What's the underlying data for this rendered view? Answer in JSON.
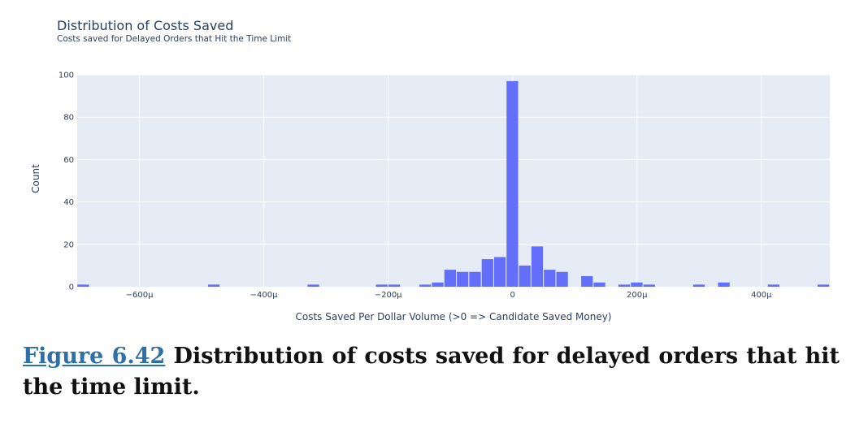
{
  "chart_data": {
    "type": "bar",
    "title": "Distribution of Costs Saved",
    "subtitle": "Costs saved for Delayed Orders that Hit the Time Limit",
    "xlabel": "Costs Saved Per Dollar Volume (>0 => Candidate Saved Money)",
    "ylabel": "Count",
    "xlim": [
      -700,
      510
    ],
    "ylim": [
      0,
      100
    ],
    "grid": true,
    "bar_width": 19.4,
    "bar_color": "#636efa",
    "plot_bg": "#e5ecf6",
    "x_tick_values": [
      -600,
      -400,
      -200,
      0,
      200,
      400
    ],
    "x_tick_labels": [
      "−600μ",
      "−400μ",
      "−200μ",
      "0",
      "200μ",
      "400μ"
    ],
    "y_tick_values": [
      0,
      20,
      40,
      60,
      80,
      100
    ],
    "y_tick_labels": [
      "0",
      "20",
      "40",
      "60",
      "80",
      "100"
    ],
    "bins": [
      {
        "x": -690,
        "count": 1
      },
      {
        "x": -480,
        "count": 1
      },
      {
        "x": -320,
        "count": 1
      },
      {
        "x": -210,
        "count": 1
      },
      {
        "x": -190,
        "count": 1
      },
      {
        "x": -140,
        "count": 1
      },
      {
        "x": -120,
        "count": 2
      },
      {
        "x": -100,
        "count": 8
      },
      {
        "x": -80,
        "count": 7
      },
      {
        "x": -60,
        "count": 7
      },
      {
        "x": -40,
        "count": 13
      },
      {
        "x": -20,
        "count": 14
      },
      {
        "x": 0,
        "count": 97
      },
      {
        "x": 20,
        "count": 10
      },
      {
        "x": 40,
        "count": 19
      },
      {
        "x": 60,
        "count": 8
      },
      {
        "x": 80,
        "count": 7
      },
      {
        "x": 120,
        "count": 5
      },
      {
        "x": 140,
        "count": 2
      },
      {
        "x": 180,
        "count": 1
      },
      {
        "x": 200,
        "count": 2
      },
      {
        "x": 220,
        "count": 1
      },
      {
        "x": 300,
        "count": 1
      },
      {
        "x": 340,
        "count": 2
      },
      {
        "x": 420,
        "count": 1
      },
      {
        "x": 500,
        "count": 1
      }
    ]
  },
  "caption": {
    "figure_ref": "Figure 6.42",
    "text": " Distribution of costs saved for delayed orders that hit the time limit."
  }
}
